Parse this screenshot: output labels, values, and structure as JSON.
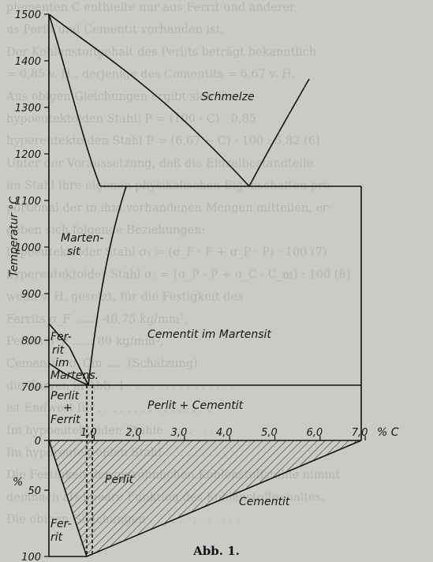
{
  "background_text": [
    "plementen C enthielte nur aus Ferrit und anderer",
    "us Perlit und Cementit vorhanden ist.",
    "Der Kohlenstoffgehalt des Perlits beträgt bekanntlich",
    "= 0,85 v. H., derjenige des Cementits = 6,67 v. H.",
    "Aus obigen Gleichungen ergibt sich für",
    "hypoeutektoiden Stahl: P = (100 · C) : 0,85",
    "hypereutektoiden Stahl P = (6,67 − C) · 100 : 5,82  (6)",
    "Unter der Voraussetzung, daß die Einzelbestandteile",
    "im Stahl ihre eigenen physikalischen Eigenschaften pro-",
    "portional der in ihm vorhandenen Mengen mitteilen, er-",
    "geben sich folgende Beziehungen:",
    "hypoeutektoider Stahl  σ₁ = (σ_F · F + σ_P · P) : 100  (7)",
    "hypereutektoider Stahl σ₂ = (σ_P · P + σ_C · C_m) : 100  (8)",
    "wenn v. H. gesetzt, für die Festigkeit des",
    "Ferrits σ_F ....... 40,75 kg/mm²,",
    "Perlits σ_P ...... 80 kg/mm²,",
    "Cementits σ_Cm ..... (Schätzung)",
    "die Kurven in Abb. 1 . . . . . . . . . . . . . . . .",
    "ist Endwert für . . . . . . . . . . . . . . . .",
    "Im hypoeutektoiden Stahle . . . . . . . . .",
    "Im hypereutektoiden Stahl . . . . . . . . .",
    "Die Festigkeit der gewöhnlichen Kohlenstoffstähle nimmt",
    "demnach als lineare Funktion des Kohlenstoffgehaltes.",
    "Die obigen Gleichungen . . . . . . . . . . . . ."
  ],
  "diagram": {
    "x_axis": {
      "label": "% C",
      "ticks": [
        "1,0",
        "2,0",
        "3,0",
        "4,0",
        "5,0",
        "6,0",
        "7,0"
      ],
      "range": [
        0,
        7.0
      ]
    },
    "y_axis_upper": {
      "label": "Temperatur °C",
      "ticks": [
        "1500",
        "1400",
        "1300",
        "1200",
        "1100",
        "1000",
        "900",
        "800",
        "700",
        "0"
      ],
      "range": [
        0,
        1500
      ]
    },
    "y_axis_lower": {
      "label": "%",
      "ticks": [
        "50",
        "100"
      ]
    },
    "regions": {
      "schmelze": "Schmelze",
      "martensit_1": "Marten-",
      "martensit_2": "sit",
      "cementit_im_martensit": "Cementit im Martensit",
      "ferrit_im_martens_1": "Fer-",
      "ferrit_im_martens_2": "rit",
      "ferrit_im_martens_3": "im",
      "ferrit_im_martens_4": "Martens.",
      "perlit_ferrit_1": "Perlit",
      "perlit_ferrit_2": "+",
      "perlit_ferrit_3": "Ferrit",
      "perlit_cementit": "Perlit + Cementit",
      "perlit": "Perlit",
      "ferrit_1": "Fer-",
      "ferrit_2": "rit",
      "cementit": "Cementit"
    }
  },
  "caption": "Abb. 1."
}
